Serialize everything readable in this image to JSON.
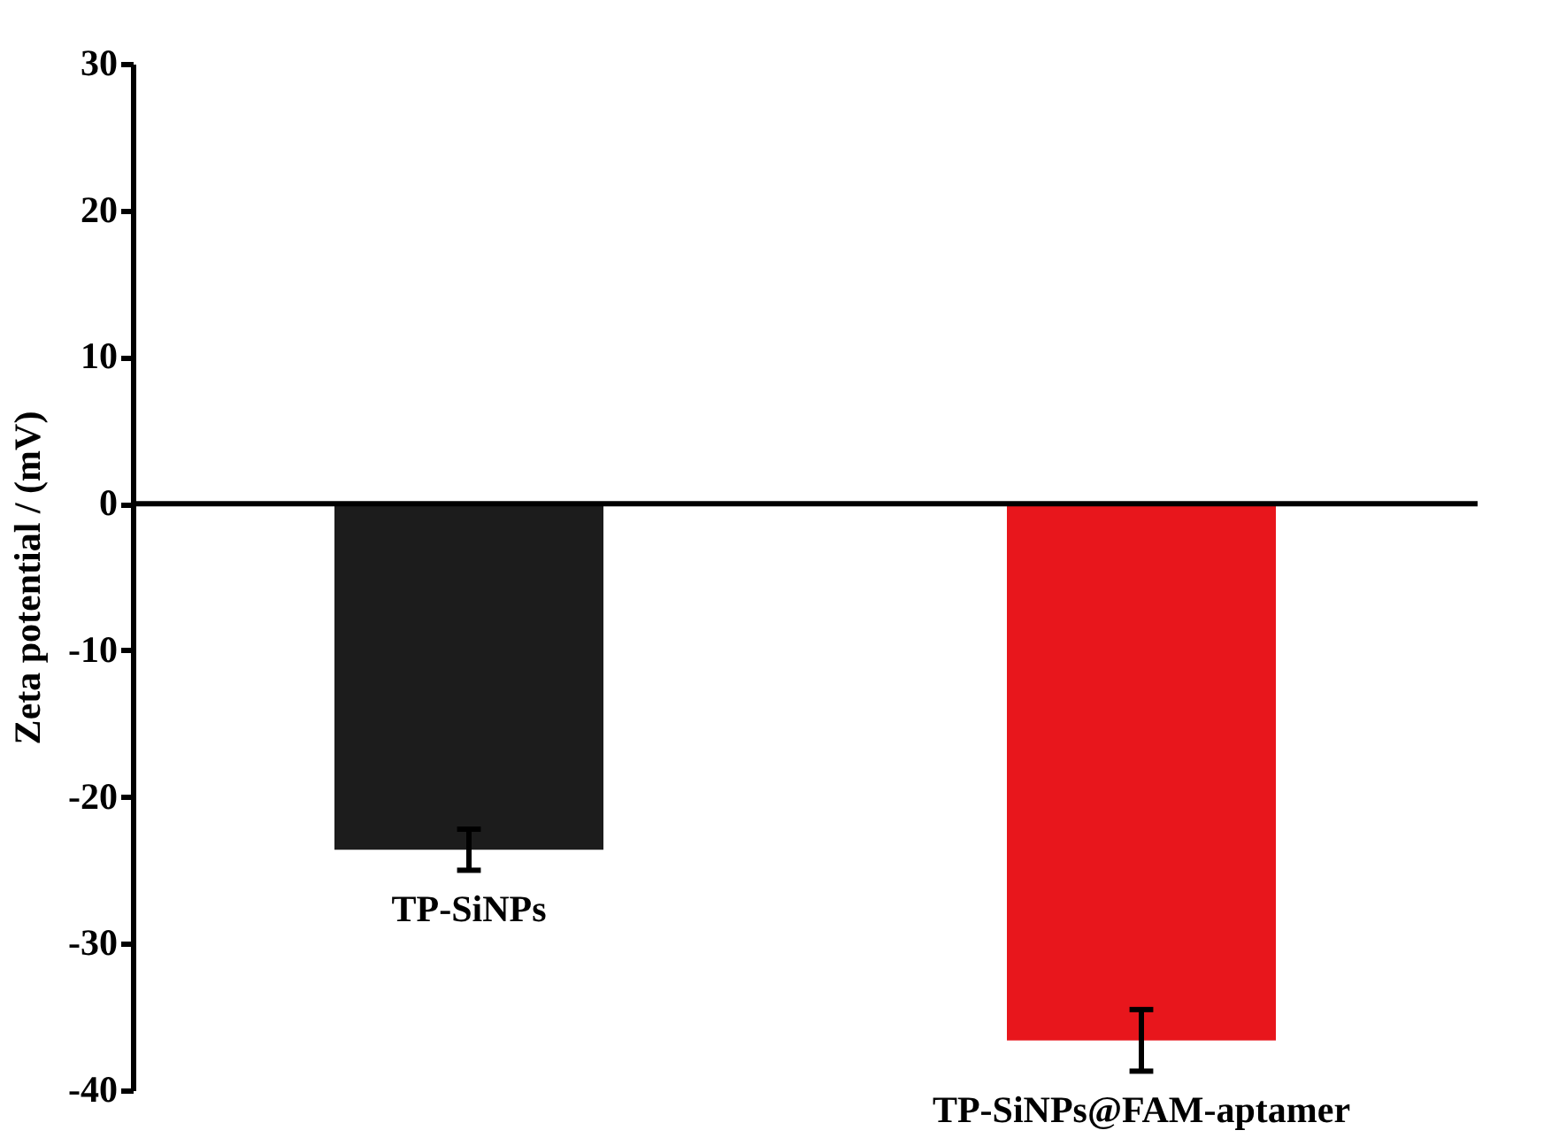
{
  "chart_data": {
    "type": "bar",
    "ylabel": "Zeta potential / (mV)",
    "categories": [
      "TP-SiNPs",
      "TP-SiNPs@FAM-aptamer"
    ],
    "values": [
      -23.6,
      -36.6
    ],
    "errors": [
      1.4,
      2.1
    ],
    "colors": [
      "#1c1c1c",
      "#e8161c"
    ],
    "ylim": [
      -40,
      30
    ],
    "yticks": [
      -40,
      -30,
      -20,
      -10,
      0,
      10,
      20,
      30
    ],
    "ref_lines": [
      {
        "axis": "y",
        "value": 0,
        "color": "#000000"
      }
    ],
    "grid": false
  }
}
